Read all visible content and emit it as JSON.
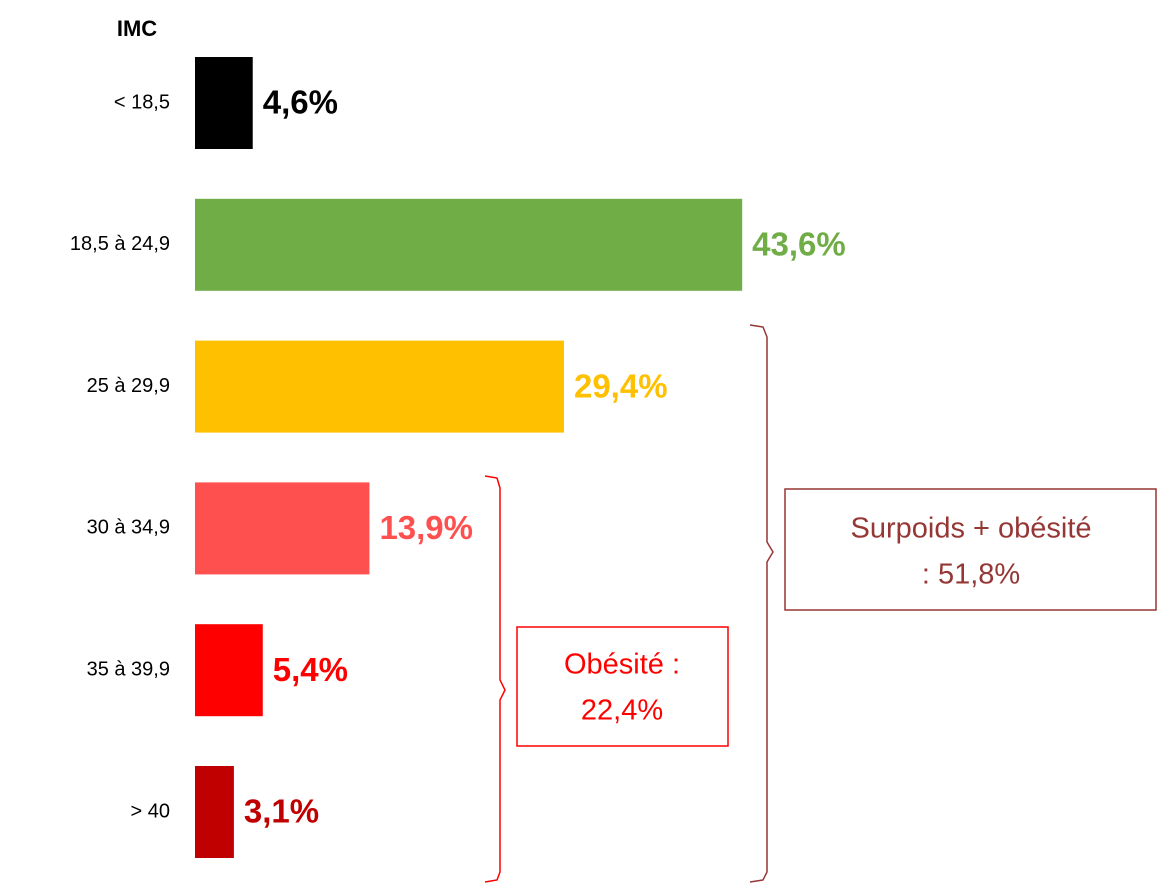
{
  "chart_data": {
    "type": "bar",
    "orientation": "horizontal",
    "axis_title": "IMC",
    "categories": [
      "< 18,5",
      "18,5 à 24,9",
      "25 à 29,9",
      "30 à 34,9",
      "35 à 39,9",
      "> 40"
    ],
    "values": [
      4.6,
      43.6,
      29.4,
      13.9,
      5.4,
      3.1
    ],
    "value_labels": [
      "4,6%",
      "43,6%",
      "29,4%",
      "13,9%",
      "5,4%",
      "3,1%"
    ],
    "colors": [
      "#000000",
      "#70ad47",
      "#ffc000",
      "#ff5050",
      "#ff0000",
      "#c00000"
    ],
    "annotations": [
      {
        "lines": [
          "Obésité :",
          "22,4%"
        ],
        "color": "#ff0000"
      },
      {
        "lines": [
          "Surpoids + obésité",
          ": 51,8%"
        ],
        "color": "#953735"
      }
    ]
  }
}
